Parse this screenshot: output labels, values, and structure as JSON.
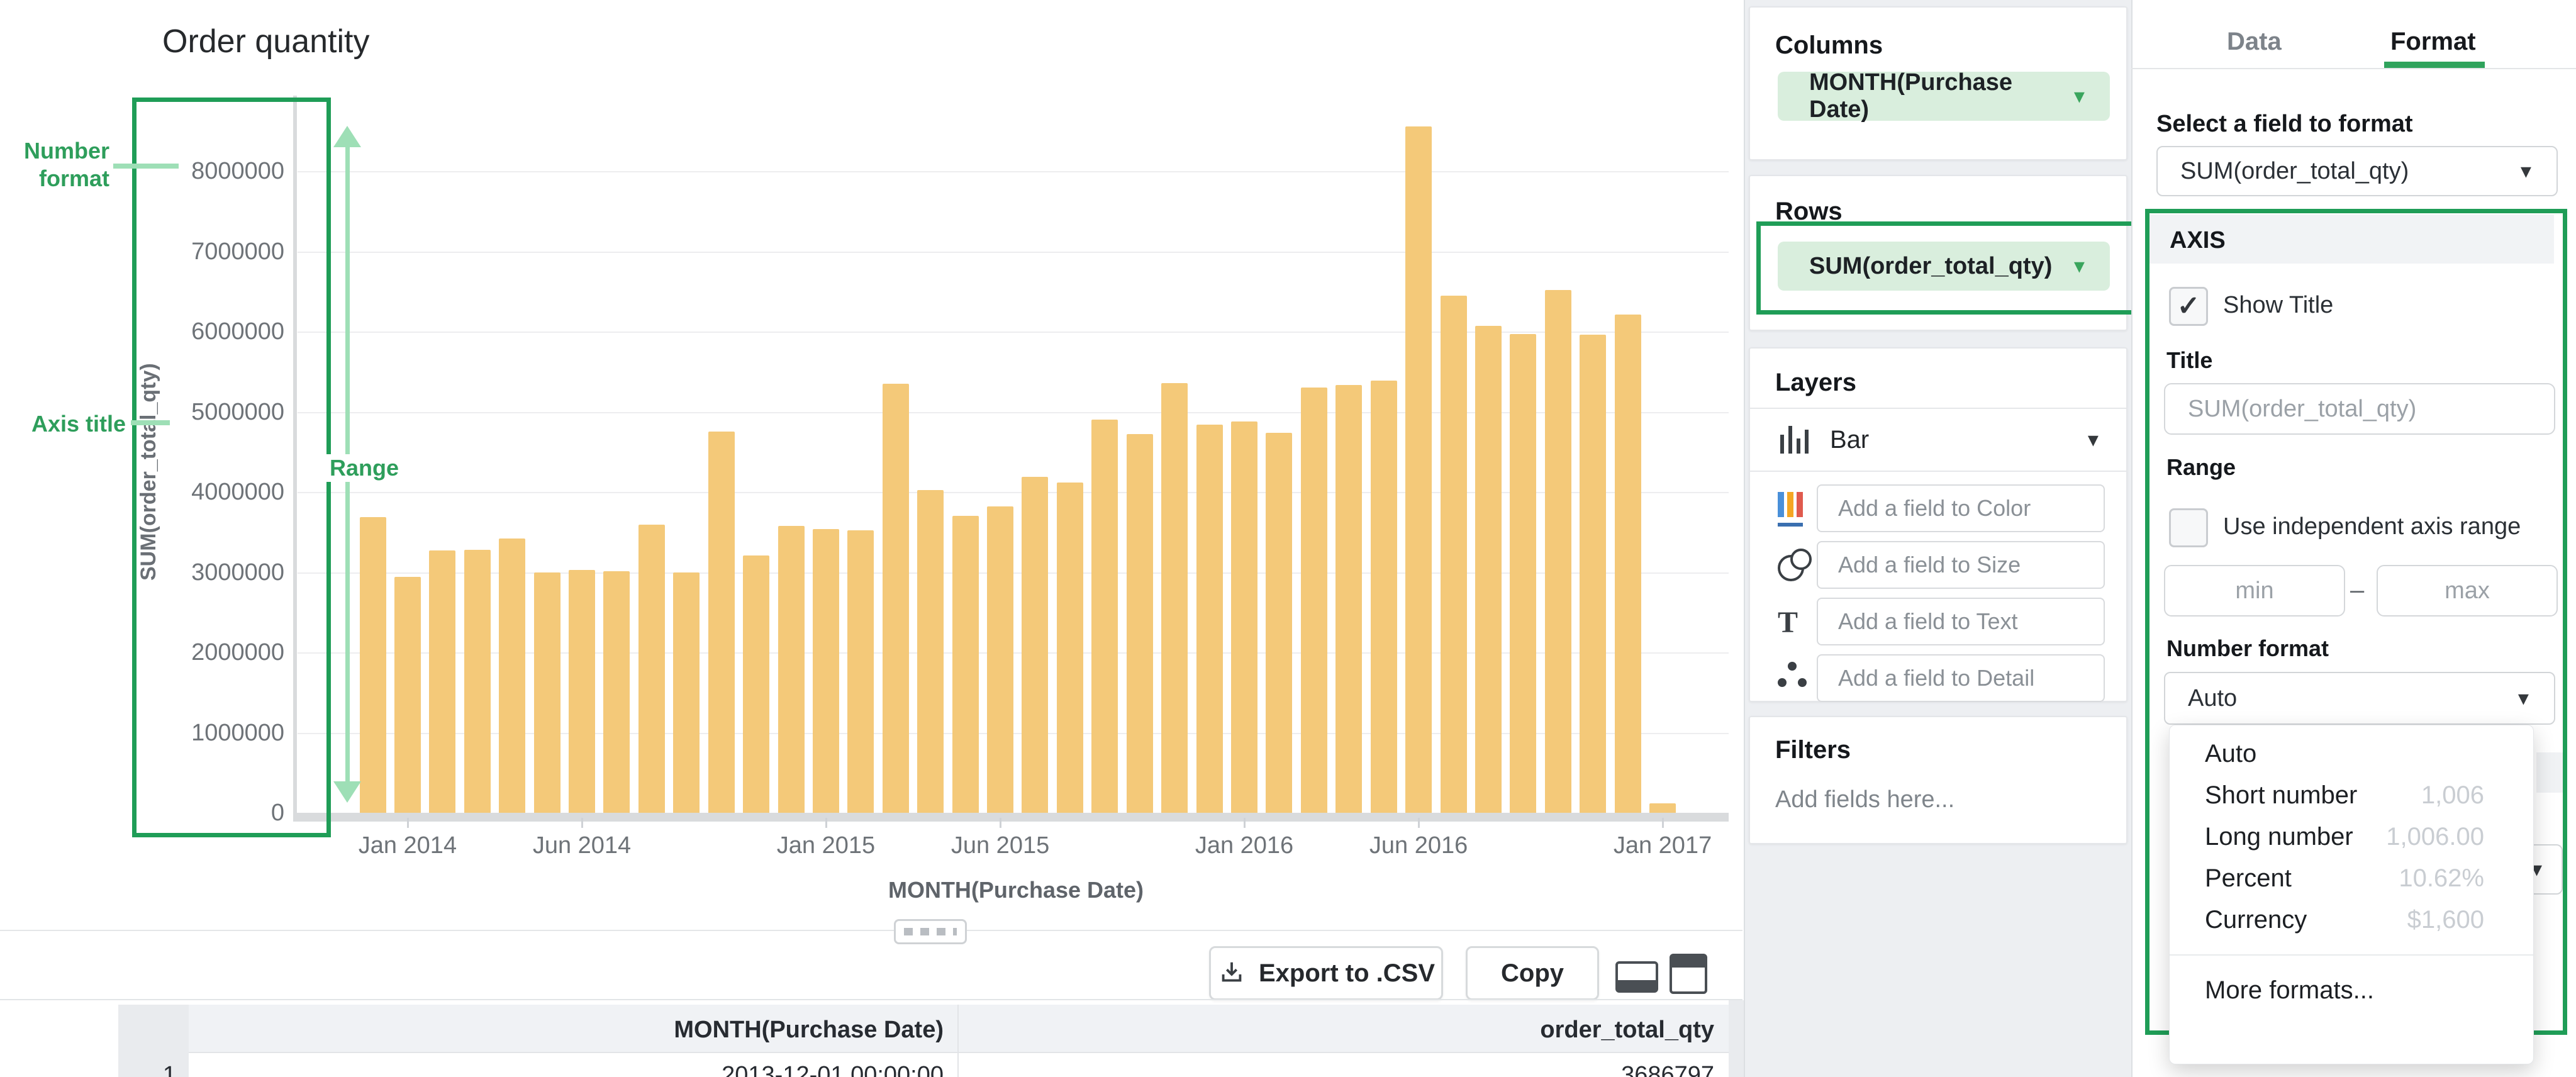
{
  "colors": {
    "bar": "#F4C979",
    "annotation_green": "#1F9D57",
    "annotation_light_green": "#9EDFB6",
    "pill_background": "#D9EEDD",
    "tab_underline": "#2FA35C"
  },
  "chart": {
    "title": "Order quantity",
    "y_axis_title": "SUM(order_total_qty)",
    "x_axis_title": "MONTH(Purchase Date)",
    "y_tick_values": [
      0,
      1000000,
      2000000,
      3000000,
      4000000,
      5000000,
      6000000,
      7000000,
      8000000
    ],
    "x_ticks": [
      {
        "label": "Jan 2014",
        "index": 1
      },
      {
        "label": "Jun 2014",
        "index": 6
      },
      {
        "label": "Jan 2015",
        "index": 13
      },
      {
        "label": "Jun 2015",
        "index": 18
      },
      {
        "label": "Jan 2016",
        "index": 25
      },
      {
        "label": "Jun 2016",
        "index": 30
      },
      {
        "label": "Jan 2017",
        "index": 37
      }
    ]
  },
  "chart_data": {
    "type": "bar",
    "title": "Order quantity",
    "xlabel": "MONTH(Purchase Date)",
    "ylabel": "SUM(order_total_qty)",
    "ylim": [
      0,
      8000000
    ],
    "grid": true,
    "legend": false,
    "bar_color": "#F4C979",
    "categories": [
      "Dec 2013",
      "Jan 2014",
      "Feb 2014",
      "Mar 2014",
      "Apr 2014",
      "May 2014",
      "Jun 2014",
      "Jul 2014",
      "Aug 2014",
      "Sep 2014",
      "Oct 2014",
      "Nov 2014",
      "Dec 2014",
      "Jan 2015",
      "Feb 2015",
      "Mar 2015",
      "Apr 2015",
      "May 2015",
      "Jun 2015",
      "Jul 2015",
      "Aug 2015",
      "Sep 2015",
      "Oct 2015",
      "Nov 2015",
      "Dec 2015",
      "Jan 2016",
      "Feb 2016",
      "Mar 2016",
      "Apr 2016",
      "May 2016",
      "Jun 2016",
      "Jul 2016",
      "Aug 2016",
      "Sep 2016",
      "Oct 2016",
      "Nov 2016",
      "Dec 2016",
      "Jan 2017"
    ],
    "values": [
      3686797,
      2940000,
      3270000,
      3280000,
      3420000,
      3000000,
      3030000,
      3010000,
      3590000,
      3000000,
      4750000,
      3210000,
      3580000,
      3540000,
      3520000,
      5350000,
      4020000,
      3700000,
      3820000,
      4190000,
      4120000,
      4900000,
      4720000,
      5360000,
      4840000,
      4880000,
      4740000,
      5300000,
      5330000,
      5390000,
      8560000,
      6450000,
      6070000,
      5970000,
      6520000,
      5960000,
      6210000,
      120000
    ]
  },
  "annotations": {
    "number_format": "Number format",
    "axis_title": "Axis title",
    "range": "Range"
  },
  "toolbar": {
    "export_label": "Export to .CSV",
    "copy_label": "Copy"
  },
  "table": {
    "headers": [
      "MONTH(Purchase Date)",
      "order_total_qty"
    ],
    "rows": [
      {
        "num": "1",
        "month": "2013-12-01 00:00:00",
        "qty": "3686797"
      }
    ]
  },
  "columns_panel": {
    "header": "Columns",
    "pill": "MONTH(Purchase Date)"
  },
  "rows_panel": {
    "header": "Rows",
    "pill": "SUM(order_total_qty)"
  },
  "layers_panel": {
    "header": "Layers",
    "layer_type": "Bar",
    "fields": [
      {
        "icon": "color-icon",
        "placeholder": "Add a field to Color"
      },
      {
        "icon": "size-icon",
        "placeholder": "Add a field to Size"
      },
      {
        "icon": "text-icon",
        "placeholder": "Add a field to Text"
      },
      {
        "icon": "detail-icon",
        "placeholder": "Add a field to Detail"
      }
    ]
  },
  "filters_panel": {
    "header": "Filters",
    "placeholder": "Add fields here..."
  },
  "format_panel": {
    "tabs": [
      "Data",
      "Format"
    ],
    "active_tab": "Format",
    "select_field_label": "Select a field to format",
    "selected_field": "SUM(order_total_qty)",
    "section_title": "AXIS",
    "show_title_label": "Show Title",
    "show_title_checked": true,
    "title_label": "Title",
    "title_placeholder": "SUM(order_total_qty)",
    "range_label": "Range",
    "independent_range_label": "Use independent axis range",
    "independent_range_checked": false,
    "min_placeholder": "min",
    "max_placeholder": "max",
    "number_format_label": "Number format",
    "number_format_value": "Auto",
    "menu": [
      {
        "label": "Auto",
        "sample": ""
      },
      {
        "label": "Short number",
        "sample": "1,006"
      },
      {
        "label": "Long number",
        "sample": "1,006.00"
      },
      {
        "label": "Percent",
        "sample": "10.62%"
      },
      {
        "label": "Currency",
        "sample": "$1,600"
      },
      {
        "label": "More formats...",
        "sample": "",
        "divider_before": true
      }
    ]
  }
}
